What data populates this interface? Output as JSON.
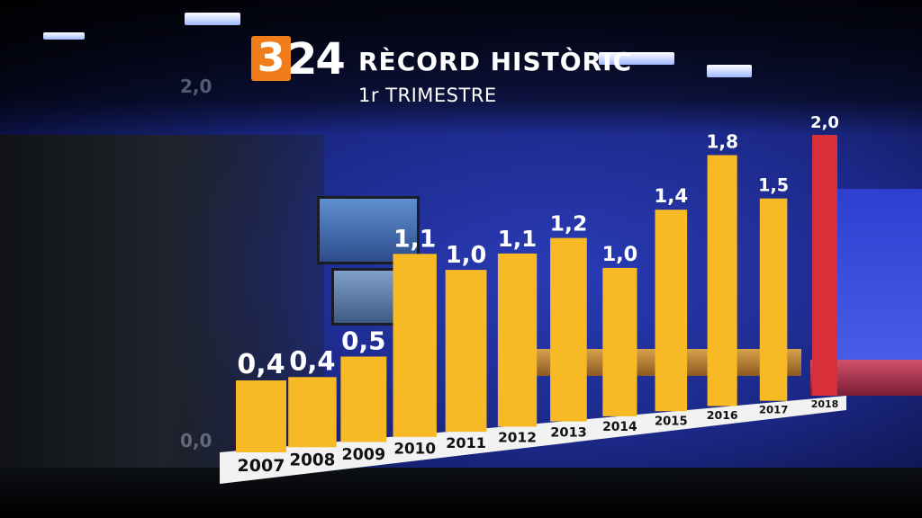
{
  "logo": {
    "digit": "3",
    "number": "24"
  },
  "chart_data": {
    "type": "bar",
    "title": "RÈCORD HISTÒRIC",
    "subtitle": "1r TRIMESTRE",
    "categories": [
      "2007",
      "2008",
      "2009",
      "2010",
      "2011",
      "2012",
      "2013",
      "2014",
      "2015",
      "2016",
      "2017",
      "2018"
    ],
    "values": [
      0.4,
      0.4,
      0.5,
      1.1,
      1.0,
      1.1,
      1.2,
      1.0,
      1.4,
      1.8,
      1.5,
      2.0
    ],
    "labels": [
      "0,4",
      "0,4",
      "0,5",
      "1,1",
      "1,0",
      "1,1",
      "1,2",
      "1,0",
      "1,4",
      "1,8",
      "1,5",
      "2,0"
    ],
    "ylim": [
      0,
      2.0
    ],
    "ghost_ticks": [
      "2,0",
      "0,0"
    ],
    "bar_color": "#f7b924",
    "highlight_color": "#d7303a",
    "highlight_index": 11,
    "grid": false,
    "legend": "none"
  }
}
